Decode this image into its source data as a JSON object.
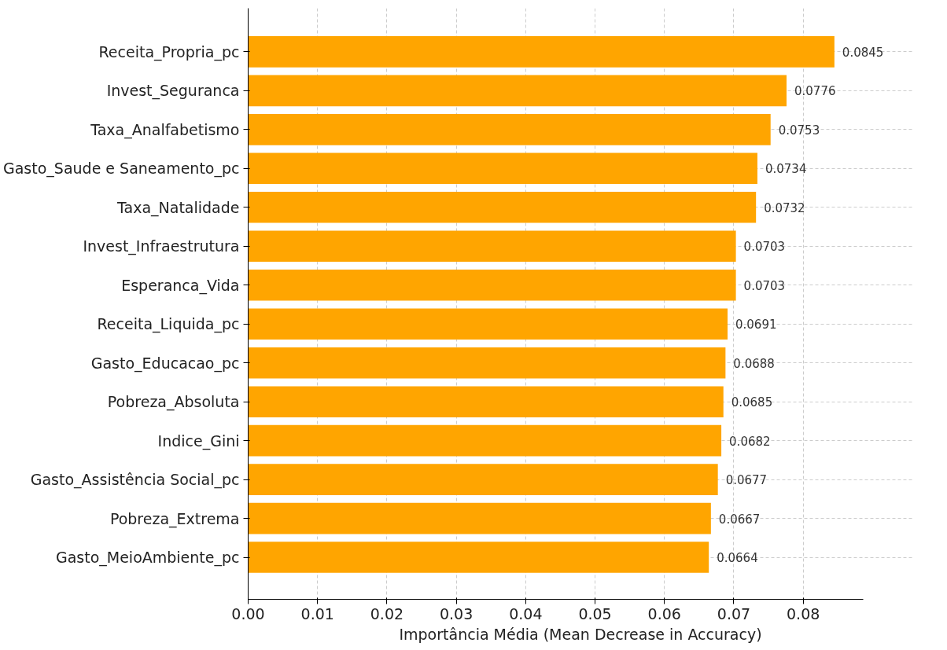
{
  "chart_data": {
    "type": "bar",
    "orientation": "horizontal",
    "xlabel": "Importância Média (Mean Decrease in Accuracy)",
    "categories": [
      "Receita_Propria_pc",
      "Invest_Seguranca",
      "Taxa_Analfabetismo",
      "Gasto_Saude e Saneamento_pc",
      "Taxa_Natalidade",
      "Invest_Infraestrutura",
      "Esperanca_Vida",
      "Receita_Liquida_pc",
      "Gasto_Educacao_pc",
      "Pobreza_Absoluta",
      "Indice_Gini",
      "Gasto_Assistência Social_pc",
      "Pobreza_Extrema",
      "Gasto_MeioAmbiente_pc"
    ],
    "values": [
      0.0845,
      0.0776,
      0.0753,
      0.0734,
      0.0732,
      0.0703,
      0.0703,
      0.0691,
      0.0688,
      0.0685,
      0.0682,
      0.0677,
      0.0667,
      0.0664
    ],
    "color": "#ffa500",
    "data_labels": true,
    "grid": true,
    "xlim": [
      0,
      0.0887
    ],
    "xticks": [
      {
        "value": 0,
        "label": "0.00"
      },
      {
        "value": 0.01,
        "label": "0.01"
      },
      {
        "value": 0.02,
        "label": "0.02"
      },
      {
        "value": 0.03,
        "label": "0.03"
      },
      {
        "value": 0.04,
        "label": "0.04"
      },
      {
        "value": 0.05,
        "label": "0.05"
      },
      {
        "value": 0.06,
        "label": "0.06"
      },
      {
        "value": 0.07,
        "label": "0.07"
      },
      {
        "value": 0.08,
        "label": "0.08"
      }
    ]
  }
}
